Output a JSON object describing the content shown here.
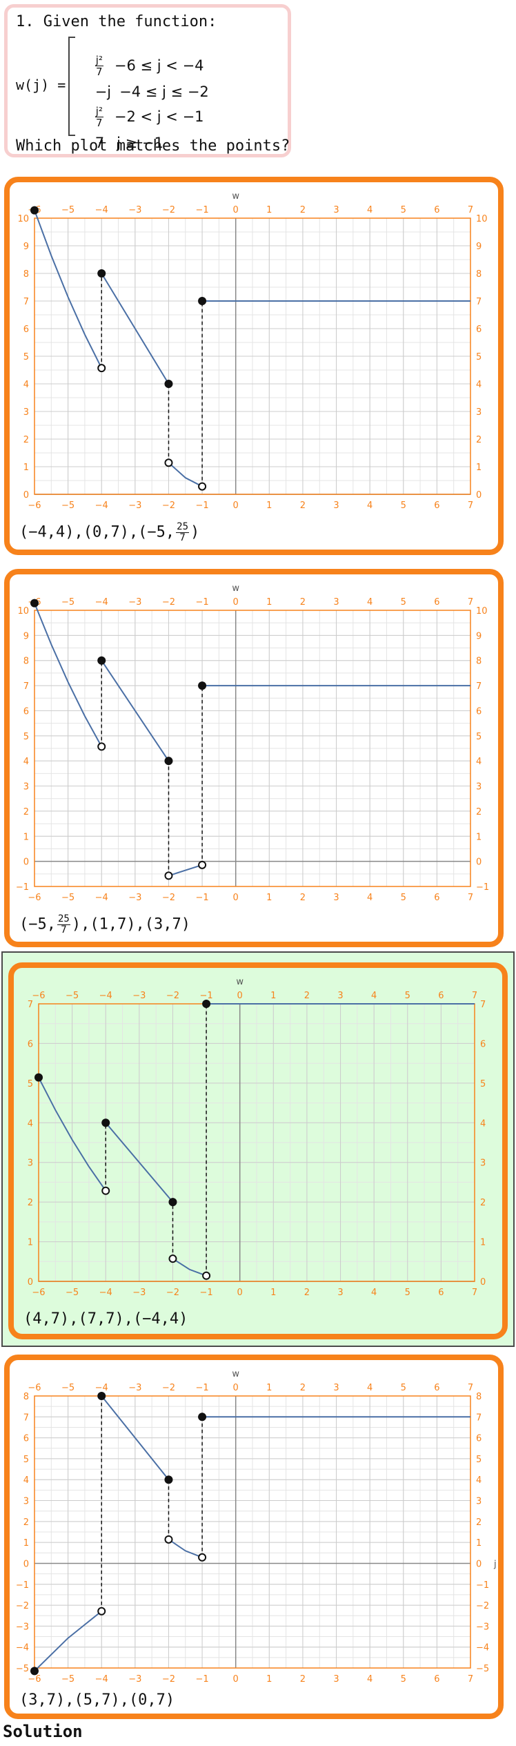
{
  "question": {
    "title": "1. Given the function:",
    "function_name": "w(j) =",
    "pieces": [
      {
        "num": "j²",
        "den": "7",
        "expr": "",
        "cond": "−6 ≤ j < −4"
      },
      {
        "num": "",
        "den": "",
        "expr": "−j",
        "cond": "−4 ≤ j ≤ −2"
      },
      {
        "num": "j²",
        "den": "7",
        "expr": "",
        "cond": "−2 < j < −1"
      },
      {
        "num": "",
        "den": "",
        "expr": "7",
        "cond": "j ≥ −1"
      }
    ],
    "prompt": "Which plot matches the points?"
  },
  "colors": {
    "accent": "#f7821b",
    "curve": "#4a6fa5",
    "correct_bg": "#ddfcdc",
    "grid": "#cccccc"
  },
  "options": [
    {
      "answer_parts": [
        "(−4,4),(0,7),(−5,",
        "25",
        "7",
        ")"
      ],
      "chart_data": {
        "type": "line",
        "top_axis_label": "w",
        "right_axis_label": "",
        "xlim": [
          -6,
          7
        ],
        "ylim": [
          0,
          10
        ],
        "xticks": [
          -6,
          -5,
          -4,
          -3,
          -2,
          -1,
          0,
          1,
          2,
          3,
          4,
          5,
          6,
          7
        ],
        "yticks": [
          0,
          1,
          2,
          3,
          4,
          5,
          6,
          7,
          8,
          9,
          10
        ],
        "segments": [
          {
            "points": [
              [
                -6,
                10.2857
              ],
              [
                -5.5,
                8.6429
              ],
              [
                -5,
                7.1429
              ],
              [
                -4.5,
                5.7857
              ],
              [
                -4,
                4.5714
              ]
            ]
          },
          {
            "points": [
              [
                -4,
                8
              ],
              [
                -2,
                4
              ]
            ]
          },
          {
            "points": [
              [
                -2,
                1.1429
              ],
              [
                -1.5,
                0.6
              ],
              [
                -1,
                0.2857
              ]
            ]
          },
          {
            "points": [
              [
                -1,
                7
              ],
              [
                7,
                7
              ]
            ]
          }
        ],
        "closed_points": [
          [
            -6,
            10.2857
          ],
          [
            -4,
            8
          ],
          [
            -2,
            4
          ],
          [
            -1,
            7
          ]
        ],
        "open_points": [
          [
            -4,
            4.5714
          ],
          [
            -2,
            1.1429
          ],
          [
            -1,
            0.2857
          ]
        ],
        "dashed_jumps": [
          [
            -4,
            4.5714,
            8
          ],
          [
            -2,
            1.1429,
            4
          ],
          [
            -1,
            0.2857,
            7
          ]
        ]
      }
    },
    {
      "answer_parts": [
        "(−5,",
        "25",
        "7",
        "),(1,7),(3,7)"
      ],
      "chart_data": {
        "type": "line",
        "top_axis_label": "w",
        "right_axis_label": "",
        "xlim": [
          -6,
          7
        ],
        "ylim": [
          -1,
          10
        ],
        "xticks": [
          -6,
          -5,
          -4,
          -3,
          -2,
          -1,
          0,
          1,
          2,
          3,
          4,
          5,
          6,
          7
        ],
        "yticks": [
          -1,
          0,
          1,
          2,
          3,
          4,
          5,
          6,
          7,
          8,
          9,
          10
        ],
        "segments": [
          {
            "points": [
              [
                -6,
                10.2857
              ],
              [
                -5.5,
                8.6429
              ],
              [
                -5,
                7.1429
              ],
              [
                -4.5,
                5.7857
              ],
              [
                -4,
                4.5714
              ]
            ]
          },
          {
            "points": [
              [
                -4,
                8
              ],
              [
                -2,
                4
              ]
            ]
          },
          {
            "points": [
              [
                -2,
                -0.5714
              ],
              [
                -1,
                -0.1429
              ]
            ]
          },
          {
            "points": [
              [
                -1,
                7
              ],
              [
                7,
                7
              ]
            ]
          }
        ],
        "closed_points": [
          [
            -6,
            10.2857
          ],
          [
            -4,
            8
          ],
          [
            -2,
            4
          ],
          [
            -1,
            7
          ]
        ],
        "open_points": [
          [
            -4,
            4.5714
          ],
          [
            -2,
            -0.5714
          ],
          [
            -1,
            -0.1429
          ]
        ],
        "dashed_jumps": [
          [
            -4,
            4.5714,
            8
          ],
          [
            -2,
            -0.5714,
            4
          ],
          [
            -1,
            -0.1429,
            7
          ]
        ]
      }
    },
    {
      "answer_parts": [
        "(4,7),(7,7),(−4,4)"
      ],
      "chart_data": {
        "type": "line",
        "top_axis_label": "w",
        "right_axis_label": "",
        "xlim": [
          -6,
          7
        ],
        "ylim": [
          0,
          7
        ],
        "xticks": [
          -6,
          -5,
          -4,
          -3,
          -2,
          -1,
          0,
          1,
          2,
          3,
          4,
          5,
          6,
          7
        ],
        "yticks": [
          0,
          1,
          2,
          3,
          4,
          5,
          6,
          7
        ],
        "segments": [
          {
            "points": [
              [
                -6,
                5.1429
              ],
              [
                -5.5,
                4.3214
              ],
              [
                -5,
                3.5714
              ],
              [
                -4.5,
                2.8929
              ],
              [
                -4,
                2.2857
              ]
            ]
          },
          {
            "points": [
              [
                -4,
                4
              ],
              [
                -2,
                2
              ]
            ]
          },
          {
            "points": [
              [
                -2,
                0.5714
              ],
              [
                -1.5,
                0.3
              ],
              [
                -1,
                0.1429
              ]
            ]
          },
          {
            "points": [
              [
                -1,
                7
              ],
              [
                7,
                7
              ]
            ]
          }
        ],
        "closed_points": [
          [
            -6,
            5.1429
          ],
          [
            -4,
            4
          ],
          [
            -2,
            2
          ],
          [
            -1,
            7
          ]
        ],
        "open_points": [
          [
            -4,
            2.2857
          ],
          [
            -2,
            0.5714
          ],
          [
            -1,
            0.1429
          ]
        ],
        "dashed_jumps": [
          [
            -4,
            2.2857,
            4
          ],
          [
            -2,
            0.5714,
            2
          ],
          [
            -1,
            0.1429,
            7
          ]
        ]
      }
    },
    {
      "answer_parts": [
        "(3,7),(5,7),(0,7)"
      ],
      "chart_data": {
        "type": "line",
        "top_axis_label": "w",
        "right_axis_label": "j",
        "xlim": [
          -6,
          7
        ],
        "ylim": [
          -5,
          8
        ],
        "xticks": [
          -6,
          -5,
          -4,
          -3,
          -2,
          -1,
          0,
          1,
          2,
          3,
          4,
          5,
          6,
          7
        ],
        "yticks": [
          -5,
          -4,
          -3,
          -2,
          -1,
          0,
          1,
          2,
          3,
          4,
          5,
          6,
          7,
          8
        ],
        "segments": [
          {
            "points": [
              [
                -6,
                -5.1429
              ],
              [
                -5,
                -3.5714
              ],
              [
                -4,
                -2.2857
              ]
            ]
          },
          {
            "points": [
              [
                -4,
                8
              ],
              [
                -2,
                4
              ]
            ]
          },
          {
            "points": [
              [
                -2,
                1.1429
              ],
              [
                -1.5,
                0.6
              ],
              [
                -1,
                0.2857
              ]
            ]
          },
          {
            "points": [
              [
                -1,
                7
              ],
              [
                7,
                7
              ]
            ]
          }
        ],
        "closed_points": [
          [
            -6,
            -5.1429
          ],
          [
            -4,
            8
          ],
          [
            -2,
            4
          ],
          [
            -1,
            7
          ]
        ],
        "open_points": [
          [
            -4,
            -2.2857
          ],
          [
            -2,
            1.1429
          ],
          [
            -1,
            0.2857
          ]
        ],
        "dashed_jumps": [
          [
            -4,
            -2.2857,
            8
          ],
          [
            -2,
            1.1429,
            4
          ],
          [
            -1,
            0.2857,
            7
          ]
        ]
      }
    }
  ],
  "solution_label": "Solution"
}
